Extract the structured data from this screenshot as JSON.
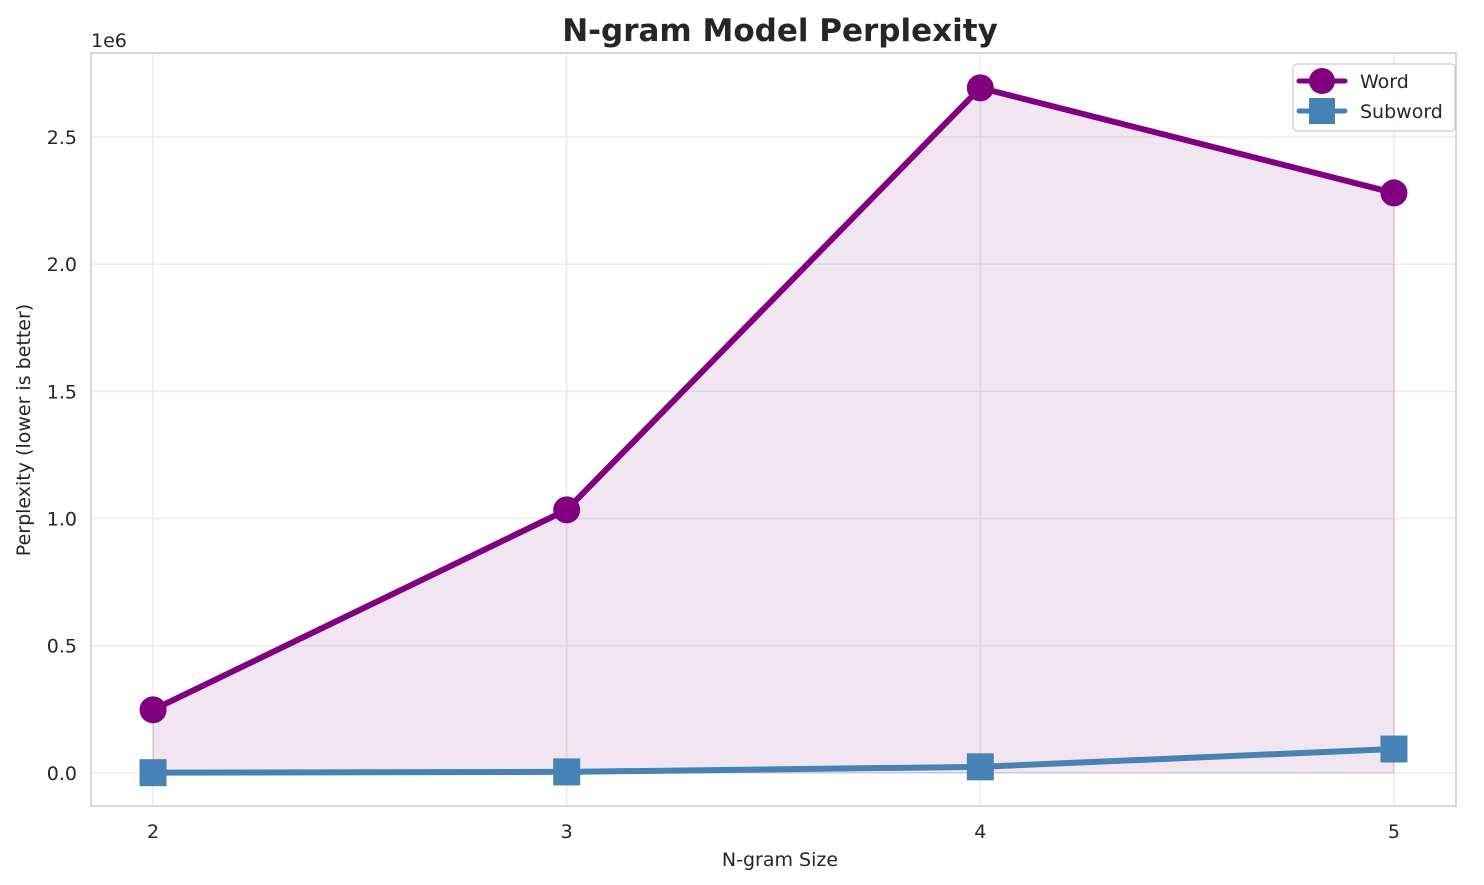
{
  "chart_data": {
    "type": "line",
    "title": "N-gram Model Perplexity",
    "xlabel": "N-gram Size",
    "ylabel": "Perplexity (lower is better)",
    "y_offset_label": "1e6",
    "x": [
      2,
      3,
      4,
      5
    ],
    "x_tick_labels": [
      "2",
      "3",
      "4",
      "5"
    ],
    "y_ticks": [
      0.0,
      0.5,
      1.0,
      1.5,
      2.0,
      2.5
    ],
    "y_tick_labels": [
      "0.0",
      "0.5",
      "1.0",
      "1.5",
      "2.0",
      "2.5"
    ],
    "ylim": [
      -0.13,
      2.83
    ],
    "xlim": [
      1.85,
      5.15
    ],
    "grid": true,
    "legend_position": "upper right",
    "series": [
      {
        "name": "Word",
        "values": [
          248000,
          1034000,
          2693000,
          2280000
        ],
        "color": "#800080",
        "marker": "circle",
        "fill_under": true
      },
      {
        "name": "Subword",
        "values": [
          1000,
          4000,
          24000,
          94000
        ],
        "color": "#4682b4",
        "marker": "square",
        "fill_under": false
      }
    ]
  },
  "colors": {
    "word": "#800080",
    "subword": "#4682b4",
    "fill": "#f0e4f2",
    "grid": "#ebebeb",
    "spine": "#cccccc"
  }
}
